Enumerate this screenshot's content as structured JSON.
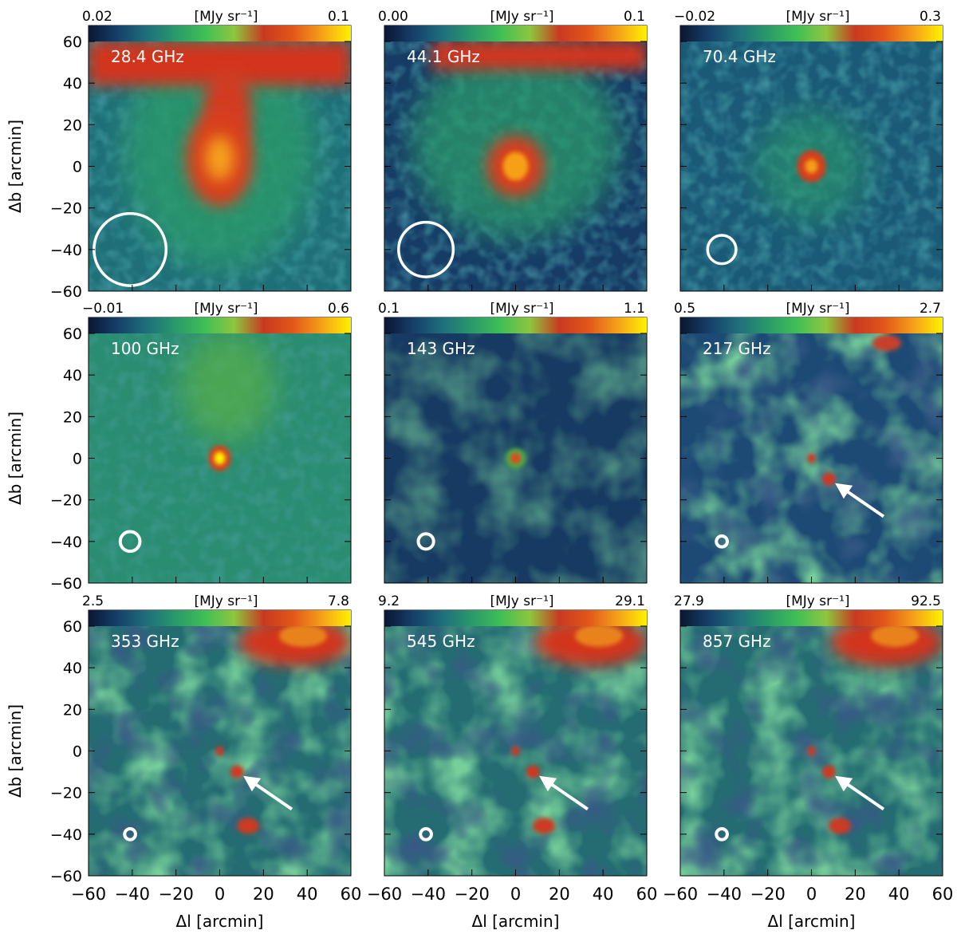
{
  "figure": {
    "unit_label": "[MJy sr⁻¹]",
    "y_axis_label": "Δb [arcmin]",
    "x_axis_label": "Δl [arcmin]",
    "tick_values": [
      -60,
      -40,
      -20,
      0,
      20,
      40,
      60
    ],
    "axis_range_arcmin": [
      -60,
      60
    ],
    "colormap": [
      "#0a1633",
      "#16406a",
      "#1f6f7c",
      "#2a9a6a",
      "#3fbf55",
      "#8ec63f",
      "#c83a20",
      "#e2561a",
      "#f4a019",
      "#fff200"
    ],
    "panels": [
      {
        "freq": "28.4 GHz",
        "cmin": "0.02",
        "cmax": "0.1",
        "beam_radius_arcmin": 16.5,
        "arrow": false
      },
      {
        "freq": "44.1 GHz",
        "cmin": "0.00",
        "cmax": "0.1",
        "beam_radius_arcmin": 12.5,
        "arrow": false
      },
      {
        "freq": "70.4 GHz",
        "cmin": "−0.02",
        "cmax": "0.3",
        "beam_radius_arcmin": 6.5,
        "arrow": false
      },
      {
        "freq": "100 GHz",
        "cmin": "−0.01",
        "cmax": "0.6",
        "beam_radius_arcmin": 4.5,
        "arrow": false
      },
      {
        "freq": "143 GHz",
        "cmin": "0.1",
        "cmax": "1.1",
        "beam_radius_arcmin": 3.5,
        "arrow": false
      },
      {
        "freq": "217 GHz",
        "cmin": "0.5",
        "cmax": "2.7",
        "beam_radius_arcmin": 2.5,
        "arrow": true
      },
      {
        "freq": "353 GHz",
        "cmin": "2.5",
        "cmax": "7.8",
        "beam_radius_arcmin": 2.5,
        "arrow": true
      },
      {
        "freq": "545 GHz",
        "cmin": "9.2",
        "cmax": "29.1",
        "beam_radius_arcmin": 2.5,
        "arrow": true
      },
      {
        "freq": "857 GHz",
        "cmin": "27.9",
        "cmax": "92.5",
        "beam_radius_arcmin": 2.5,
        "arrow": true
      }
    ]
  }
}
